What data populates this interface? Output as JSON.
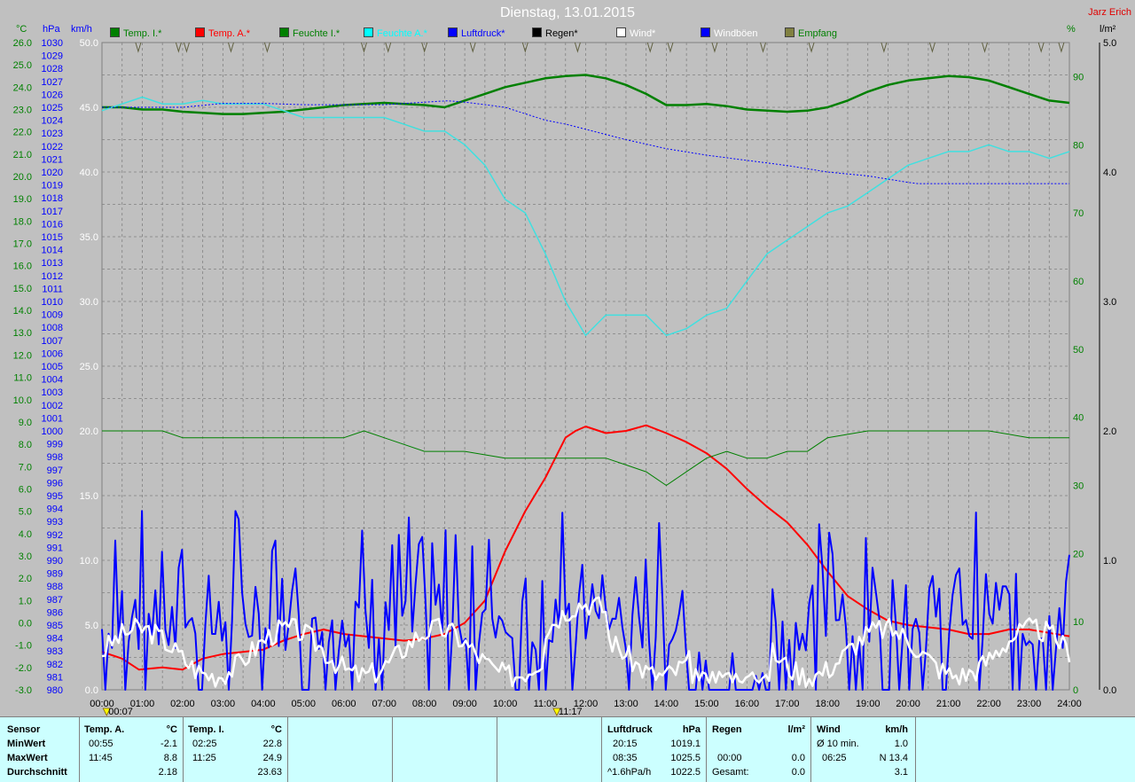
{
  "title": "Dienstag, 13.01.2015",
  "corner_label": "Jarz Erich",
  "axis_units": {
    "temp": "°C",
    "pressure": "hPa",
    "wind": "km/h",
    "humidity": "%",
    "rain": "l/m²"
  },
  "legend": [
    {
      "label": "Temp. I.*",
      "color": "#008000"
    },
    {
      "label": "Temp. A.*",
      "color": "#ff0000"
    },
    {
      "label": "Feuchte I.*",
      "color": "#008000"
    },
    {
      "label": "Feuchte A.*",
      "color": "#00ffff"
    },
    {
      "label": "Luftdruck*",
      "color": "#0000ff"
    },
    {
      "label": "Regen*",
      "color": "#000000"
    },
    {
      "label": "Wind*",
      "color": "#ffffff"
    },
    {
      "label": "Windböen",
      "color": "#0000ff"
    },
    {
      "label": "Empfang",
      "color": "#808040"
    }
  ],
  "markers": [
    "00:07",
    "11:17"
  ],
  "chart_data": {
    "type": "line",
    "x_ticks": [
      "00:00",
      "01:00",
      "02:00",
      "03:00",
      "04:00",
      "05:00",
      "06:00",
      "07:00",
      "08:00",
      "09:00",
      "10:00",
      "11:00",
      "12:00",
      "13:00",
      "14:00",
      "15:00",
      "16:00",
      "17:00",
      "18:00",
      "19:00",
      "20:00",
      "21:00",
      "22:00",
      "23:00",
      "24:00"
    ],
    "temp_ticks": [
      "26.0",
      "25.0",
      "24.0",
      "23.0",
      "22.0",
      "21.0",
      "20.0",
      "19.0",
      "18.0",
      "17.0",
      "16.0",
      "15.0",
      "14.0",
      "13.0",
      "12.0",
      "11.0",
      "10.0",
      "9.0",
      "8.0",
      "7.0",
      "6.0",
      "5.0",
      "4.0",
      "3.0",
      "2.0",
      "1.0",
      "0.0",
      "-1.0",
      "-2.0",
      "-3.0"
    ],
    "temp_ylim": [
      -3,
      26
    ],
    "pressure_ylim": [
      980,
      1030
    ],
    "wind_ticks": [
      "50.0",
      "45.0",
      "40.0",
      "35.0",
      "30.0",
      "25.0",
      "20.0",
      "15.0",
      "10.0",
      "5.0",
      "0.0"
    ],
    "wind_ylim": [
      0,
      50
    ],
    "humidity_ticks": [
      "90",
      "80",
      "70",
      "60",
      "50",
      "40",
      "30",
      "20",
      "10",
      "0"
    ],
    "humidity_ylim": [
      0,
      95
    ],
    "rain_ticks": [
      "5.0",
      "4.0",
      "3.0",
      "2.0",
      "1.0",
      "0.0"
    ],
    "rain_ylim": [
      0,
      5
    ],
    "series": [
      {
        "name": "Temp. I.*",
        "axis": "temp",
        "color": "#008000",
        "width": 2.5,
        "x": [
          0,
          0.5,
          1,
          1.5,
          2,
          2.5,
          3,
          3.5,
          4,
          4.5,
          5,
          5.5,
          6,
          6.5,
          7,
          7.5,
          8,
          8.5,
          9,
          9.5,
          10,
          10.5,
          11,
          11.5,
          12,
          12.5,
          13,
          13.5,
          14,
          14.5,
          15,
          15.5,
          16,
          16.5,
          17,
          17.5,
          18,
          18.5,
          19,
          19.5,
          20,
          20.5,
          21,
          21.5,
          22,
          22.5,
          23,
          23.5,
          24
        ],
        "y": [
          23.1,
          23.1,
          23.0,
          23.0,
          22.9,
          22.85,
          22.8,
          22.8,
          22.85,
          22.9,
          23.0,
          23.1,
          23.2,
          23.25,
          23.3,
          23.25,
          23.2,
          23.1,
          23.4,
          23.7,
          24.0,
          24.2,
          24.4,
          24.5,
          24.55,
          24.4,
          24.1,
          23.7,
          23.2,
          23.2,
          23.25,
          23.15,
          23.0,
          22.95,
          22.9,
          22.95,
          23.1,
          23.4,
          23.8,
          24.1,
          24.3,
          24.4,
          24.5,
          24.45,
          24.3,
          24.0,
          23.7,
          23.4,
          23.3
        ]
      },
      {
        "name": "Temp. A.*",
        "axis": "temp",
        "color": "#ff0000",
        "width": 2,
        "x": [
          0,
          0.5,
          0.92,
          1.5,
          2,
          2.5,
          3,
          3.5,
          4,
          4.5,
          5,
          5.5,
          6,
          6.5,
          7,
          7.5,
          8,
          8.5,
          9,
          9.5,
          10,
          10.5,
          11,
          11.5,
          11.75,
          12,
          12.5,
          13,
          13.5,
          14,
          14.5,
          15,
          15.5,
          16,
          16.5,
          17,
          17.5,
          18,
          18.5,
          19,
          19.5,
          20,
          20.5,
          21,
          21.5,
          22,
          22.5,
          23,
          23.5,
          24
        ],
        "y": [
          -1.3,
          -1.6,
          -2.1,
          -2.0,
          -2.1,
          -1.6,
          -1.4,
          -1.3,
          -1.2,
          -0.8,
          -0.5,
          -0.3,
          -0.5,
          -0.6,
          -0.7,
          -0.8,
          -0.7,
          -0.5,
          0.0,
          1.0,
          3.2,
          5.0,
          6.5,
          8.3,
          8.6,
          8.8,
          8.5,
          8.6,
          8.85,
          8.5,
          8.1,
          7.6,
          6.9,
          6.0,
          5.2,
          4.5,
          3.5,
          2.3,
          1.2,
          0.6,
          0.1,
          -0.1,
          -0.2,
          -0.3,
          -0.5,
          -0.5,
          -0.3,
          -0.3,
          -0.45,
          -0.6
        ]
      },
      {
        "name": "Feuchte I.*",
        "axis": "humidity",
        "color": "#008000",
        "width": 1,
        "x": [
          0,
          1,
          1.5,
          2,
          3,
          4,
          5,
          6,
          6.5,
          7,
          8,
          9,
          10,
          11,
          12,
          12.5,
          13,
          13.5,
          14,
          14.5,
          15,
          15.5,
          16,
          16.5,
          17,
          17.5,
          18,
          19,
          20,
          21,
          22,
          23,
          24
        ],
        "y": [
          38,
          38,
          38,
          37,
          37,
          37,
          37,
          37,
          38,
          37,
          35,
          35,
          34,
          34,
          34,
          34,
          33,
          32,
          30,
          32,
          34,
          35,
          34,
          34,
          35,
          35,
          37,
          38,
          38,
          38,
          38,
          37,
          37
        ]
      },
      {
        "name": "Feuchte A.*",
        "axis": "humidity",
        "color": "#40e0e0",
        "width": 1.5,
        "x": [
          0,
          0.5,
          1,
          1.5,
          2,
          2.5,
          3,
          3.5,
          4,
          4.5,
          5,
          5.5,
          6,
          6.5,
          7,
          7.5,
          8,
          8.5,
          9,
          9.5,
          10,
          10.5,
          11,
          11.5,
          12,
          12.5,
          13,
          13.5,
          14,
          14.5,
          15,
          15.5,
          16,
          16.5,
          17,
          17.5,
          18,
          18.5,
          19,
          19.5,
          20,
          20.5,
          21,
          21.5,
          22,
          22.5,
          23,
          23.5,
          24
        ],
        "y": [
          85,
          86,
          87,
          86,
          86,
          86.5,
          86,
          86,
          86,
          85,
          84,
          84,
          84,
          84,
          84,
          83,
          82,
          82,
          80,
          77,
          72,
          70,
          64,
          57,
          52,
          55,
          55,
          55,
          52,
          53,
          55,
          56,
          60,
          64,
          66,
          68,
          70,
          71,
          73,
          75,
          77,
          78,
          79,
          79,
          80,
          79,
          79,
          78,
          79
        ]
      },
      {
        "name": "Luftdruck*",
        "axis": "pressure",
        "color": "#0000ff",
        "width": 1,
        "dash": "2,2",
        "x": [
          0,
          1,
          2,
          3,
          4,
          5,
          6,
          7,
          8,
          8.58,
          9,
          10,
          11,
          11.5,
          12,
          13,
          14,
          15,
          16,
          17,
          18,
          19,
          20,
          20.25,
          21,
          22,
          23,
          24
        ],
        "y": [
          1025.0,
          1025.0,
          1025.0,
          1025.3,
          1025.3,
          1025.2,
          1025.2,
          1025.2,
          1025.4,
          1025.5,
          1025.4,
          1025.0,
          1024.0,
          1023.7,
          1023.3,
          1022.5,
          1021.8,
          1021.3,
          1020.9,
          1020.5,
          1020.0,
          1019.7,
          1019.2,
          1019.1,
          1019.1,
          1019.1,
          1019.1,
          1019.1
        ]
      },
      {
        "name": "Windböen",
        "axis": "wind",
        "color": "#0000ff",
        "width": 2,
        "seed": 7,
        "base": "gust"
      },
      {
        "name": "Wind*",
        "axis": "wind",
        "color": "#ffffff",
        "width": 2.5,
        "seed": 3,
        "base": "wind"
      }
    ]
  },
  "info": {
    "row_labels": [
      "Sensor",
      "MinWert",
      "MaxWert",
      "Durchschnitt"
    ],
    "temp_a": {
      "header": "Temp. A.",
      "unit": "°C",
      "min_time": "00:55",
      "min": "-2.1",
      "max_time": "11:45",
      "max": "8.8",
      "avg": "2.18"
    },
    "temp_i": {
      "header": "Temp. I.",
      "unit": "°C",
      "min_time": "02:25",
      "min": "22.8",
      "max_time": "11:25",
      "max": "24.9",
      "avg": "23.63"
    },
    "pressure": {
      "header": "Luftdruck",
      "unit": "hPa",
      "min_time": "20:15",
      "min": "1019.1",
      "max_time": "08:35",
      "max": "1025.5",
      "trend": "^1.6hPa/h",
      "avg": "1022.5"
    },
    "rain": {
      "header": "Regen",
      "unit": "l/m²",
      "max_time": "00:00",
      "max": "0.0",
      "total_label": "Gesamt:",
      "total": "0.0"
    },
    "wind": {
      "header": "Wind",
      "unit": "km/h",
      "avg_label": "Ø 10 min.",
      "avg_val": "1.0",
      "max_time": "06:25",
      "max": "N 13.4",
      "mean": "3.1"
    }
  }
}
